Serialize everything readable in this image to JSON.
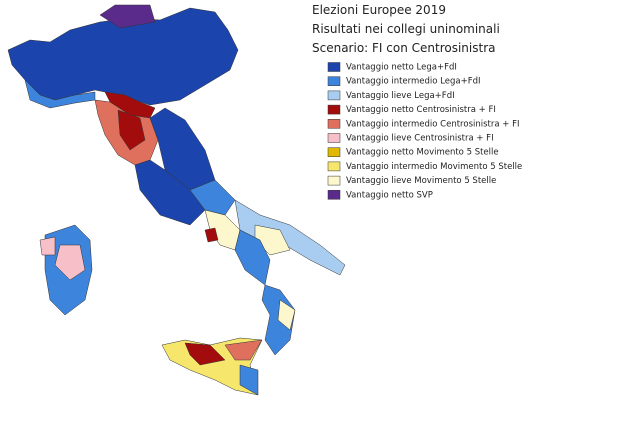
{
  "header": {
    "title": "Elezioni Europee 2019",
    "subtitle": "Risultati nei collegi uninominali",
    "scenario": "Scenario: FI con Centrosinistra"
  },
  "legend": {
    "items": [
      {
        "label": "Vantaggio netto Lega+FdI",
        "color": "#1c44ad"
      },
      {
        "label": "Vantaggio intermedio Lega+FdI",
        "color": "#3d84dc"
      },
      {
        "label": "Vantaggio lieve Lega+FdI",
        "color": "#a9cdf0"
      },
      {
        "label": "Vantaggio netto Centrosinistra + FI",
        "color": "#a30c0c"
      },
      {
        "label": "Vantaggio intermedio Centrosinistra + FI",
        "color": "#e0705e"
      },
      {
        "label": "Vantaggio lieve Centrosinistra + FI",
        "color": "#f7bfc8"
      },
      {
        "label": "Vantaggio netto Movimento 5 Stelle",
        "color": "#e0b800"
      },
      {
        "label": "Vantaggio intermedio Movimento 5 Stelle",
        "color": "#f7e66c"
      },
      {
        "label": "Vantaggio lieve Movimento 5 Stelle",
        "color": "#fcf7cc"
      },
      {
        "label": "Vantaggio netto SVP",
        "color": "#5b2b8c"
      }
    ]
  }
}
